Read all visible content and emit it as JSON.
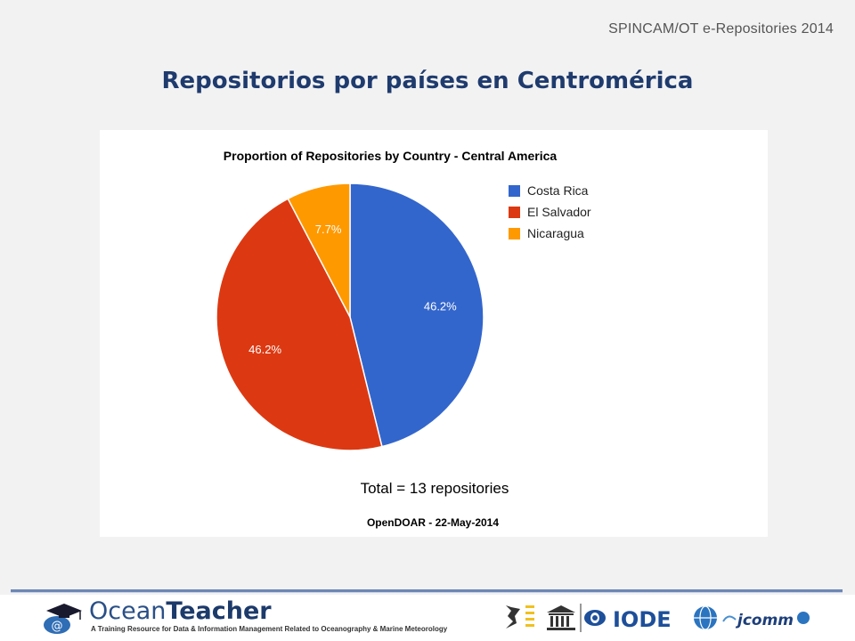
{
  "header": {
    "note": "SPINCAM/OT e-Repositories 2014",
    "title": "Repositorios por países en Centromérica"
  },
  "chart_data": {
    "type": "pie",
    "title": "Proportion of Repositories by Country - Central America",
    "categories": [
      "Costa Rica",
      "El Salvador",
      "Nicaragua"
    ],
    "values": [
      46.2,
      46.2,
      7.7
    ],
    "value_labels": [
      "46.2%",
      "46.2%",
      "7.7%"
    ],
    "colors": [
      "#3366cc",
      "#dc3912",
      "#ff9900"
    ],
    "legend_position": "right",
    "total_note": "Total = 13 repositories",
    "source_note": "OpenDOAR - 22-May-2014"
  },
  "footer": {
    "brand_a": "Ocean",
    "brand_b": "Teacher",
    "tagline": "A Training Resource for Data & Information Management Related to Oceanography & Marine Meteorology",
    "partners": {
      "iode": "IODE",
      "jcomm": "jcomm"
    }
  }
}
